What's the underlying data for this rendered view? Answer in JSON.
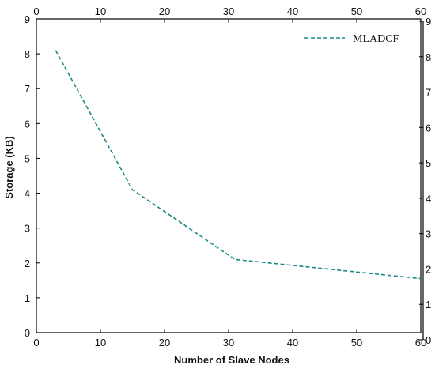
{
  "chart_data": {
    "type": "line",
    "xlabel": "Number of Slave Nodes",
    "ylabel": "Storage (KB)",
    "xlim": [
      0,
      60
    ],
    "ylim": [
      0,
      9
    ],
    "x_ticks": [
      0,
      10,
      20,
      30,
      40,
      50,
      60
    ],
    "y_ticks": [
      0,
      1,
      2,
      3,
      4,
      5,
      6,
      7,
      8,
      9
    ],
    "top_axis_ticks": [
      0,
      10,
      20,
      30,
      40,
      50,
      60
    ],
    "right_axis_ticks": [
      0,
      1,
      2,
      3,
      4,
      5,
      6,
      7,
      8,
      9
    ],
    "grid": false,
    "legend_position": "top-right",
    "series": [
      {
        "name": "MLADCF",
        "color": "#1a8a86",
        "line_style": "dashed",
        "x": [
          3,
          15,
          31,
          60
        ],
        "y": [
          8.1,
          4.1,
          2.1,
          1.55
        ]
      }
    ]
  }
}
